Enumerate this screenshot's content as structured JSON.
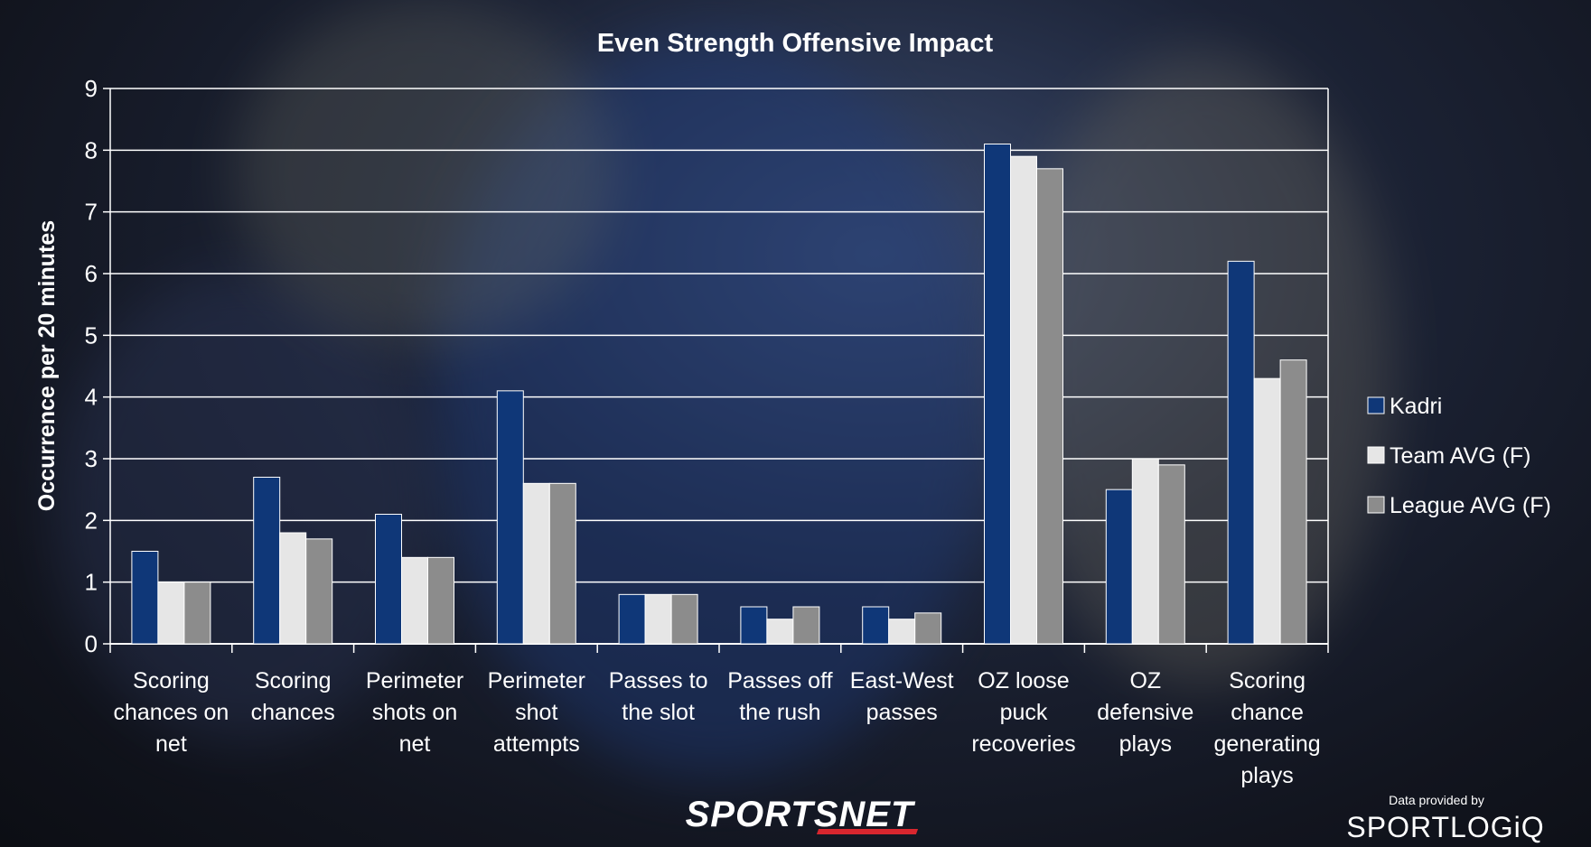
{
  "chart_data": {
    "type": "bar",
    "title": "Even Strength Offensive Impact",
    "xlabel": "",
    "ylabel": "Occurrence per 20 minutes",
    "ylim": [
      0,
      9
    ],
    "yticks": [
      0,
      1,
      2,
      3,
      4,
      5,
      6,
      7,
      8,
      9
    ],
    "grid": true,
    "legend_position": "right",
    "categories": [
      [
        "Scoring",
        "chances on",
        "net"
      ],
      [
        "Scoring",
        "chances"
      ],
      [
        "Perimeter",
        "shots on",
        "net"
      ],
      [
        "Perimeter",
        "shot",
        "attempts"
      ],
      [
        "Passes to",
        "the slot"
      ],
      [
        "Passes off",
        "the rush"
      ],
      [
        "East-West",
        "passes"
      ],
      [
        "OZ loose",
        "puck",
        "recoveries"
      ],
      [
        "OZ",
        "defensive",
        "plays"
      ],
      [
        "Scoring",
        "chance",
        "generating",
        "plays"
      ]
    ],
    "series": [
      {
        "name": "Kadri",
        "color": "#0f3778",
        "values": [
          1.5,
          2.7,
          2.1,
          4.1,
          0.8,
          0.6,
          0.6,
          8.1,
          2.5,
          6.2
        ]
      },
      {
        "name": "Team AVG (F)",
        "color": "#e6e6e6",
        "values": [
          1.0,
          1.8,
          1.4,
          2.6,
          0.8,
          0.4,
          0.4,
          7.9,
          3.0,
          4.3
        ]
      },
      {
        "name": "League AVG (F)",
        "color": "#8c8c8c",
        "values": [
          1.0,
          1.7,
          1.4,
          2.6,
          0.8,
          0.6,
          0.5,
          7.7,
          2.9,
          4.6
        ]
      }
    ]
  },
  "footer": {
    "brand": "SPORTSNET",
    "credit_label": "Data provided by",
    "credit_brand": "SPORTLOGiQ"
  }
}
